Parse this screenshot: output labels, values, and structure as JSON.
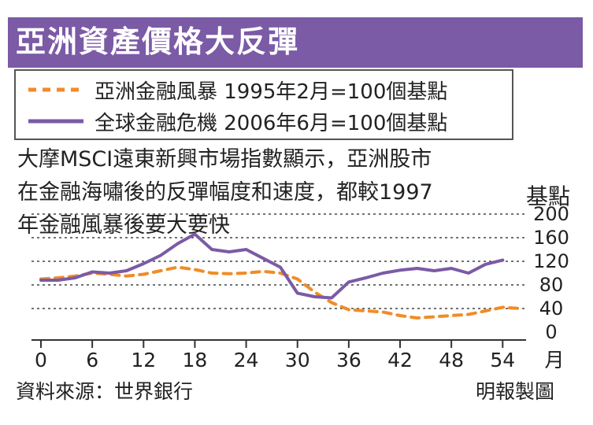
{
  "title": "亞洲資產價格大反彈",
  "legend": [
    {
      "label": "亞洲金融風暴 1995年2月=100個基點",
      "color": "#f08c28",
      "style": "dashed"
    },
    {
      "label": "全球金融危機 2006年6月=100個基點",
      "color": "#7b5aa6",
      "style": "solid"
    }
  ],
  "description": [
    "大摩MSCI遠東新興市場指數顯示，亞洲股市",
    "在金融海嘯後的反彈幅度和速度，都較1997",
    "年金融風暴後要大要快"
  ],
  "unit_label": "基點",
  "source": "資料來源：世界銀行",
  "credit": "明報製圖",
  "chart_data": {
    "type": "line",
    "xlabel": "月",
    "ylabel": "基點",
    "xlim": [
      0,
      56
    ],
    "ylim": [
      0,
      200
    ],
    "x_ticks": [
      "0",
      "6",
      "12",
      "18",
      "24",
      "30",
      "36",
      "42",
      "48",
      "54"
    ],
    "y_ticks": [
      "0",
      "40",
      "80",
      "120",
      "160",
      "200"
    ],
    "grid": true,
    "series": [
      {
        "name": "亞洲金融風暴 1995年2月=100個基點",
        "color": "#f08c28",
        "style": "dashed",
        "x": [
          0,
          2,
          4,
          6,
          8,
          10,
          12,
          14,
          16,
          18,
          20,
          22,
          24,
          26,
          28,
          30,
          32,
          34,
          36,
          38,
          40,
          42,
          44,
          46,
          48,
          50,
          52,
          54,
          56
        ],
        "y": [
          90,
          92,
          95,
          100,
          98,
          95,
          98,
          104,
          110,
          106,
          100,
          99,
          100,
          103,
          100,
          90,
          68,
          50,
          38,
          36,
          34,
          28,
          24,
          26,
          28,
          30,
          36,
          42,
          40
        ]
      },
      {
        "name": "全球金融危機 2006年6月=100個基點",
        "color": "#7b5aa6",
        "style": "solid",
        "x": [
          0,
          2,
          4,
          6,
          8,
          10,
          12,
          14,
          16,
          18,
          20,
          22,
          24,
          26,
          28,
          30,
          32,
          34,
          36,
          38,
          40,
          42,
          44,
          46,
          48,
          50,
          52,
          54
        ],
        "y": [
          88,
          88,
          92,
          102,
          100,
          104,
          116,
          130,
          150,
          166,
          140,
          136,
          140,
          125,
          110,
          66,
          60,
          58,
          85,
          92,
          100,
          105,
          108,
          104,
          108,
          100,
          115,
          122
        ]
      }
    ]
  }
}
